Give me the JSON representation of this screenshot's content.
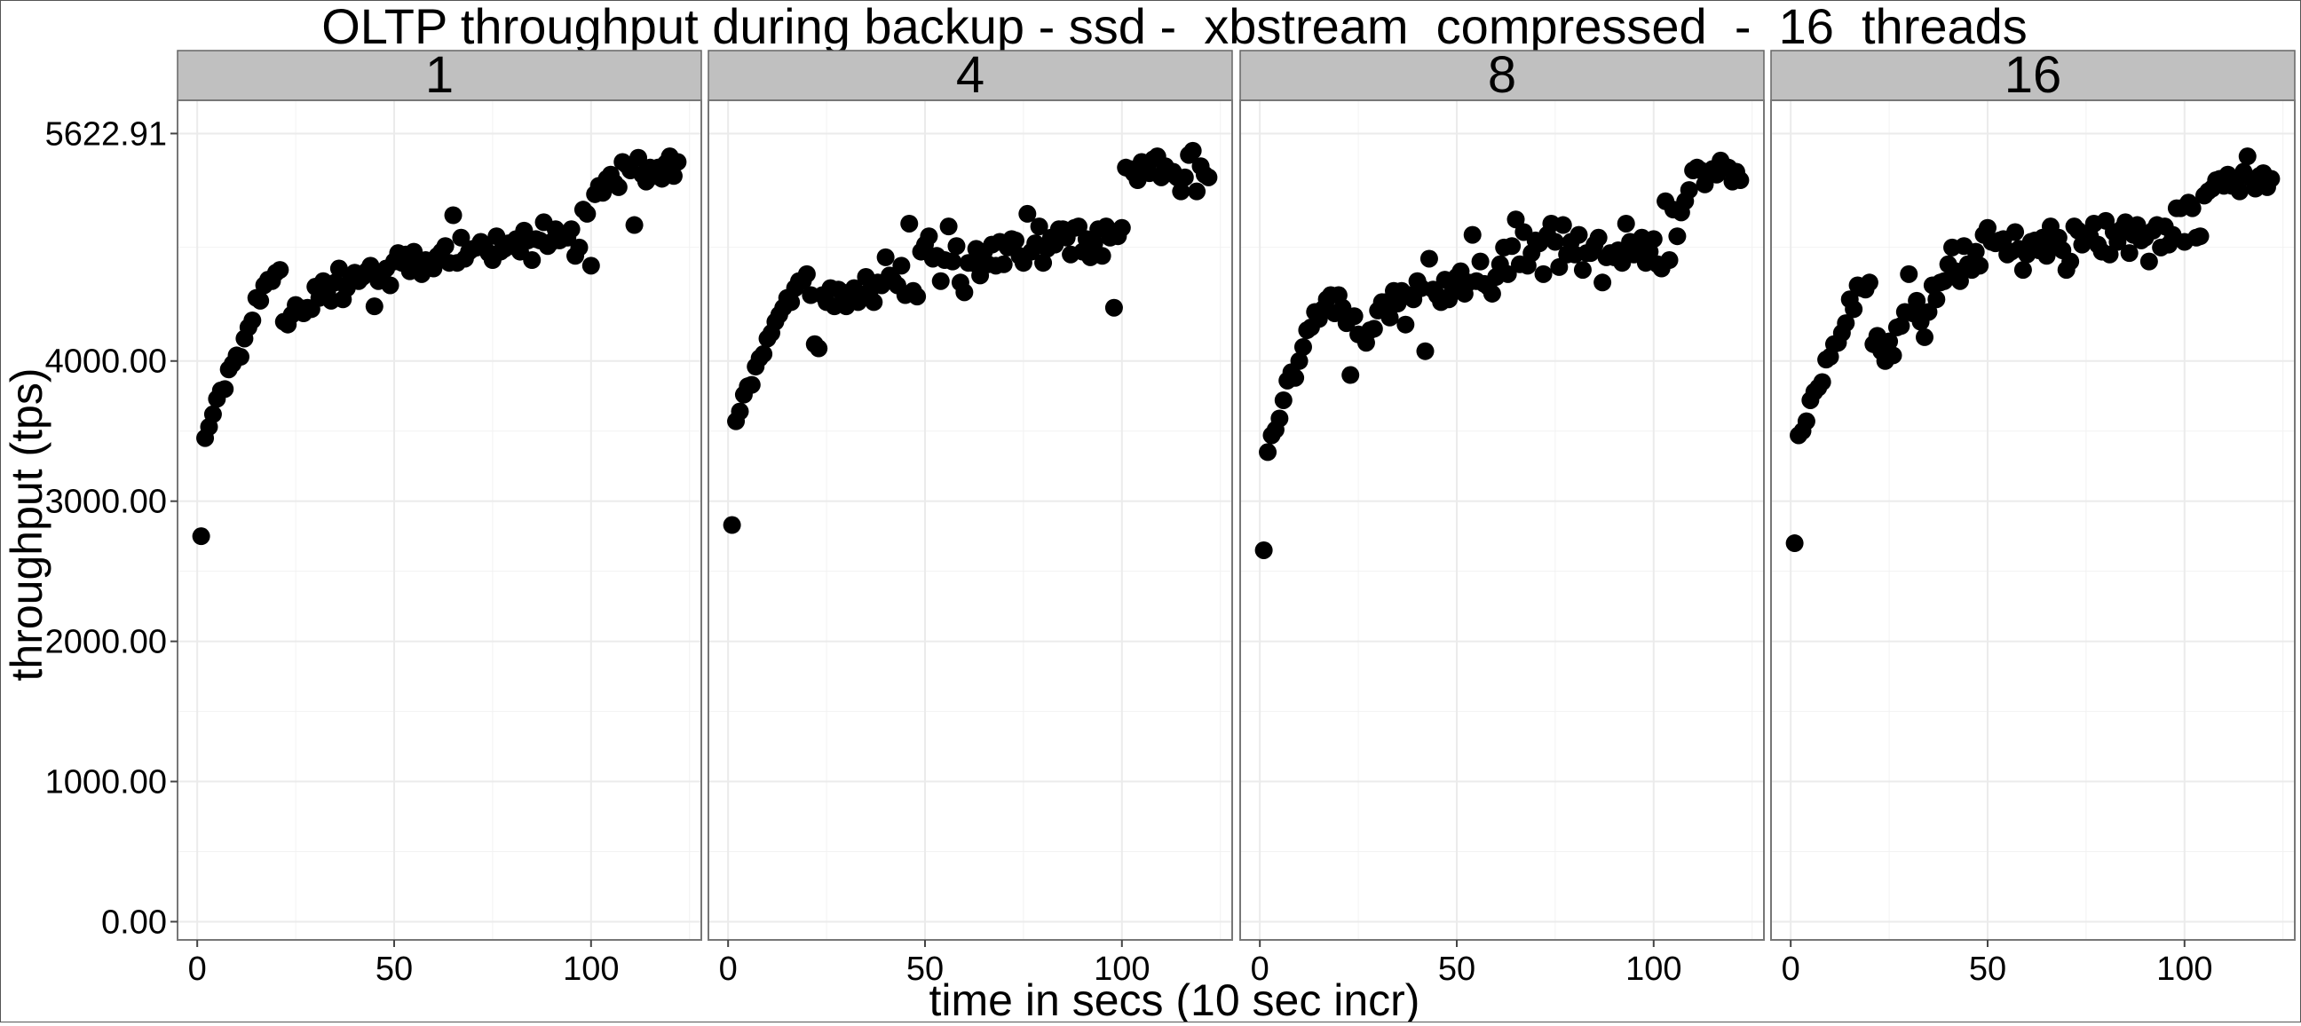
{
  "chart_data": {
    "type": "scatter",
    "title": "OLTP throughput during backup - ssd -  xbstream_compressed  -  16  threads",
    "xlabel": "time in secs (10 sec incr)",
    "ylabel": "throughput (tps)",
    "xlim": [
      -5,
      128
    ],
    "ylim": [
      -130,
      5860
    ],
    "xticks": [
      0,
      50,
      100
    ],
    "xtick_labels": [
      "0",
      "50",
      "100"
    ],
    "yticks": [
      0,
      1000,
      2000,
      3000,
      4000,
      5622.91
    ],
    "ytick_labels": [
      "0.00",
      "1000.00",
      "2000.00",
      "3000.00",
      "4000.00",
      "5622.91"
    ],
    "grid": true,
    "legend": "none",
    "panels": [
      {
        "label": "1",
        "x": [
          1,
          2,
          3,
          4,
          5,
          6,
          7,
          8,
          9,
          10,
          11,
          12,
          13,
          14,
          15,
          16,
          17,
          18,
          19,
          20,
          21,
          22,
          23,
          24,
          25,
          26,
          27,
          28,
          29,
          30,
          31,
          32,
          33,
          34,
          35,
          36,
          37,
          38,
          39,
          40,
          41,
          42,
          43,
          44,
          45,
          46,
          47,
          48,
          49,
          50,
          51,
          52,
          53,
          54,
          55,
          56,
          57,
          58,
          59,
          60,
          61,
          62,
          63,
          64,
          65,
          66,
          67,
          68,
          69,
          70,
          71,
          72,
          73,
          74,
          75,
          76,
          77,
          78,
          79,
          80,
          81,
          82,
          83,
          84,
          85,
          86,
          87,
          88,
          89,
          90,
          91,
          92,
          93,
          94,
          95,
          96,
          97,
          98,
          99,
          100,
          101,
          102,
          103,
          104,
          105,
          106,
          107,
          108,
          109,
          110,
          111,
          112,
          113,
          114,
          115,
          116,
          117,
          118,
          119,
          120,
          121,
          122
        ],
        "y": [
          2750,
          3450,
          3530,
          3620,
          3730,
          3790,
          3800,
          3940,
          3980,
          4040,
          4030,
          4160,
          4240,
          4290,
          4450,
          4430,
          4540,
          4580,
          4570,
          4630,
          4650,
          4280,
          4260,
          4330,
          4400,
          4380,
          4340,
          4380,
          4370,
          4530,
          4450,
          4570,
          4490,
          4430,
          4560,
          4660,
          4440,
          4520,
          4600,
          4630,
          4570,
          4600,
          4640,
          4680,
          4390,
          4570,
          4620,
          4660,
          4540,
          4710,
          4770,
          4700,
          4760,
          4640,
          4780,
          4720,
          4620,
          4720,
          4690,
          4660,
          4750,
          4780,
          4820,
          4700,
          5040,
          4700,
          4880,
          4730,
          4780,
          4800,
          4810,
          4850,
          4810,
          4770,
          4720,
          4890,
          4780,
          4800,
          4840,
          4820,
          4870,
          4780,
          4930,
          4860,
          4720,
          4870,
          4860,
          4990,
          4820,
          4850,
          4940,
          4860,
          4900,
          4880,
          4940,
          4750,
          4810,
          5080,
          5050,
          4680,
          5190,
          5250,
          5200,
          5300,
          5330,
          5270,
          5240,
          5420,
          5400,
          5360,
          4970,
          5450,
          5330,
          5280,
          5380,
          5320,
          5380,
          5300,
          5410,
          5460,
          5320,
          5420
        ]
      },
      {
        "label": "4",
        "x": [
          1,
          2,
          3,
          4,
          5,
          6,
          7,
          8,
          9,
          10,
          11,
          12,
          13,
          14,
          15,
          16,
          17,
          18,
          19,
          20,
          21,
          22,
          23,
          24,
          25,
          26,
          27,
          28,
          29,
          30,
          31,
          32,
          33,
          34,
          35,
          36,
          37,
          38,
          39,
          40,
          41,
          42,
          43,
          44,
          45,
          46,
          47,
          48,
          49,
          50,
          51,
          52,
          53,
          54,
          55,
          56,
          57,
          58,
          59,
          60,
          61,
          62,
          63,
          64,
          65,
          66,
          67,
          68,
          69,
          70,
          71,
          72,
          73,
          74,
          75,
          76,
          77,
          78,
          79,
          80,
          81,
          82,
          83,
          84,
          85,
          86,
          87,
          88,
          89,
          90,
          91,
          92,
          93,
          94,
          95,
          96,
          97,
          98,
          99,
          100,
          101,
          102,
          103,
          104,
          105,
          106,
          107,
          108,
          109,
          110,
          111,
          112,
          113,
          114,
          115,
          116,
          117,
          118,
          119,
          120,
          121,
          122
        ],
        "y": [
          2830,
          3570,
          3640,
          3760,
          3820,
          3830,
          3960,
          4020,
          4050,
          4160,
          4200,
          4280,
          4330,
          4380,
          4450,
          4420,
          4520,
          4570,
          4570,
          4620,
          4470,
          4120,
          4090,
          4470,
          4420,
          4520,
          4390,
          4510,
          4490,
          4390,
          4460,
          4520,
          4420,
          4450,
          4600,
          4500,
          4420,
          4560,
          4540,
          4740,
          4610,
          4570,
          4540,
          4680,
          4470,
          4980,
          4500,
          4460,
          4780,
          4830,
          4890,
          4730,
          4750,
          4570,
          4720,
          4960,
          4710,
          4820,
          4560,
          4490,
          4700,
          4700,
          4800,
          4610,
          4780,
          4690,
          4830,
          4680,
          4850,
          4690,
          4810,
          4870,
          4860,
          4750,
          4700,
          5050,
          4780,
          4840,
          4960,
          4700,
          4800,
          4880,
          4830,
          4940,
          4940,
          4880,
          4760,
          4950,
          4960,
          4780,
          4870,
          4740,
          4840,
          4940,
          4750,
          4960,
          4880,
          4380,
          4890,
          4950,
          5380,
          5370,
          5340,
          5290,
          5420,
          5390,
          5340,
          5440,
          5460,
          5310,
          5390,
          5340,
          5350,
          5310,
          5210,
          5310,
          5470,
          5500,
          5210,
          5390,
          5330,
          5310
        ]
      },
      {
        "label": "8",
        "x": [
          1,
          2,
          3,
          4,
          5,
          6,
          7,
          8,
          9,
          10,
          11,
          12,
          13,
          14,
          15,
          16,
          17,
          18,
          19,
          20,
          21,
          22,
          23,
          24,
          25,
          26,
          27,
          28,
          29,
          30,
          31,
          32,
          33,
          34,
          35,
          36,
          37,
          38,
          39,
          40,
          41,
          42,
          43,
          44,
          45,
          46,
          47,
          48,
          49,
          50,
          51,
          52,
          53,
          54,
          55,
          56,
          57,
          58,
          59,
          60,
          61,
          62,
          63,
          64,
          65,
          66,
          67,
          68,
          69,
          70,
          71,
          72,
          73,
          74,
          75,
          76,
          77,
          78,
          79,
          80,
          81,
          82,
          83,
          84,
          85,
          86,
          87,
          88,
          89,
          90,
          91,
          92,
          93,
          94,
          95,
          96,
          97,
          98,
          99,
          100,
          101,
          102,
          103,
          104,
          105,
          106,
          107,
          108,
          109,
          110,
          111,
          112,
          113,
          114,
          115,
          116,
          117,
          118,
          119,
          120,
          121,
          122
        ],
        "y": [
          2650,
          3350,
          3470,
          3510,
          3590,
          3720,
          3860,
          3920,
          3880,
          4000,
          4100,
          4220,
          4240,
          4350,
          4300,
          4370,
          4440,
          4470,
          4340,
          4470,
          4380,
          4270,
          3900,
          4320,
          4190,
          4180,
          4130,
          4220,
          4230,
          4360,
          4420,
          4420,
          4310,
          4500,
          4410,
          4500,
          4260,
          4470,
          4440,
          4570,
          4520,
          4070,
          4730,
          4510,
          4470,
          4420,
          4580,
          4440,
          4520,
          4600,
          4640,
          4480,
          4560,
          4900,
          4570,
          4710,
          4550,
          4530,
          4480,
          4600,
          4690,
          4810,
          4620,
          4820,
          5010,
          4690,
          4920,
          4680,
          4770,
          4860,
          4840,
          4620,
          4900,
          4980,
          4850,
          4670,
          4970,
          4760,
          4850,
          4760,
          4900,
          4650,
          4770,
          4770,
          4830,
          4880,
          4560,
          4740,
          4770,
          4740,
          4790,
          4700,
          4980,
          4850,
          4760,
          4820,
          4880,
          4700,
          4780,
          4870,
          4690,
          4660,
          5140,
          4720,
          5080,
          4890,
          5060,
          5140,
          5220,
          5360,
          5380,
          5360,
          5260,
          5330,
          5370,
          5330,
          5430,
          5380,
          5380,
          5280,
          5350,
          5290
        ]
      },
      {
        "label": "16",
        "x": [
          1,
          2,
          3,
          4,
          5,
          6,
          7,
          8,
          9,
          10,
          11,
          12,
          13,
          14,
          15,
          16,
          17,
          18,
          19,
          20,
          21,
          22,
          23,
          24,
          25,
          26,
          27,
          28,
          29,
          30,
          31,
          32,
          33,
          34,
          35,
          36,
          37,
          38,
          39,
          40,
          41,
          42,
          43,
          44,
          45,
          46,
          47,
          48,
          49,
          50,
          51,
          52,
          53,
          54,
          55,
          56,
          57,
          58,
          59,
          60,
          61,
          62,
          63,
          64,
          65,
          66,
          67,
          68,
          69,
          70,
          71,
          72,
          73,
          74,
          75,
          76,
          77,
          78,
          79,
          80,
          81,
          82,
          83,
          84,
          85,
          86,
          87,
          88,
          89,
          90,
          91,
          92,
          93,
          94,
          95,
          96,
          97,
          98,
          99,
          100,
          101,
          102,
          103,
          104,
          105,
          106,
          107,
          108,
          109,
          110,
          111,
          112,
          113,
          114,
          115,
          116,
          117,
          118,
          119,
          120,
          121,
          122
        ],
        "y": [
          2700,
          3470,
          3500,
          3570,
          3720,
          3780,
          3810,
          3850,
          4010,
          4030,
          4120,
          4130,
          4200,
          4270,
          4440,
          4370,
          4540,
          4520,
          4510,
          4560,
          4120,
          4180,
          4070,
          4000,
          4140,
          4040,
          4240,
          4250,
          4350,
          4620,
          4340,
          4430,
          4280,
          4170,
          4350,
          4540,
          4440,
          4560,
          4570,
          4690,
          4810,
          4640,
          4570,
          4820,
          4690,
          4650,
          4780,
          4680,
          4900,
          4950,
          4850,
          4840,
          4860,
          4870,
          4760,
          4780,
          4920,
          4800,
          4650,
          4760,
          4850,
          4860,
          4790,
          4880,
          4750,
          4960,
          4820,
          4880,
          4790,
          4650,
          4710,
          4960,
          4930,
          4830,
          4880,
          4890,
          4980,
          4830,
          4780,
          5000,
          4760,
          4920,
          4850,
          4940,
          4990,
          4770,
          4900,
          4970,
          4860,
          4880,
          4710,
          4930,
          4970,
          4810,
          4960,
          4830,
          4900,
          5090,
          5090,
          4850,
          5130,
          5090,
          4880,
          4890,
          5180,
          5210,
          5230,
          5290,
          5300,
          5250,
          5330,
          5250,
          5260,
          5210,
          5350,
          5460,
          5300,
          5230,
          5320,
          5340,
          5240,
          5300
        ]
      }
    ]
  }
}
